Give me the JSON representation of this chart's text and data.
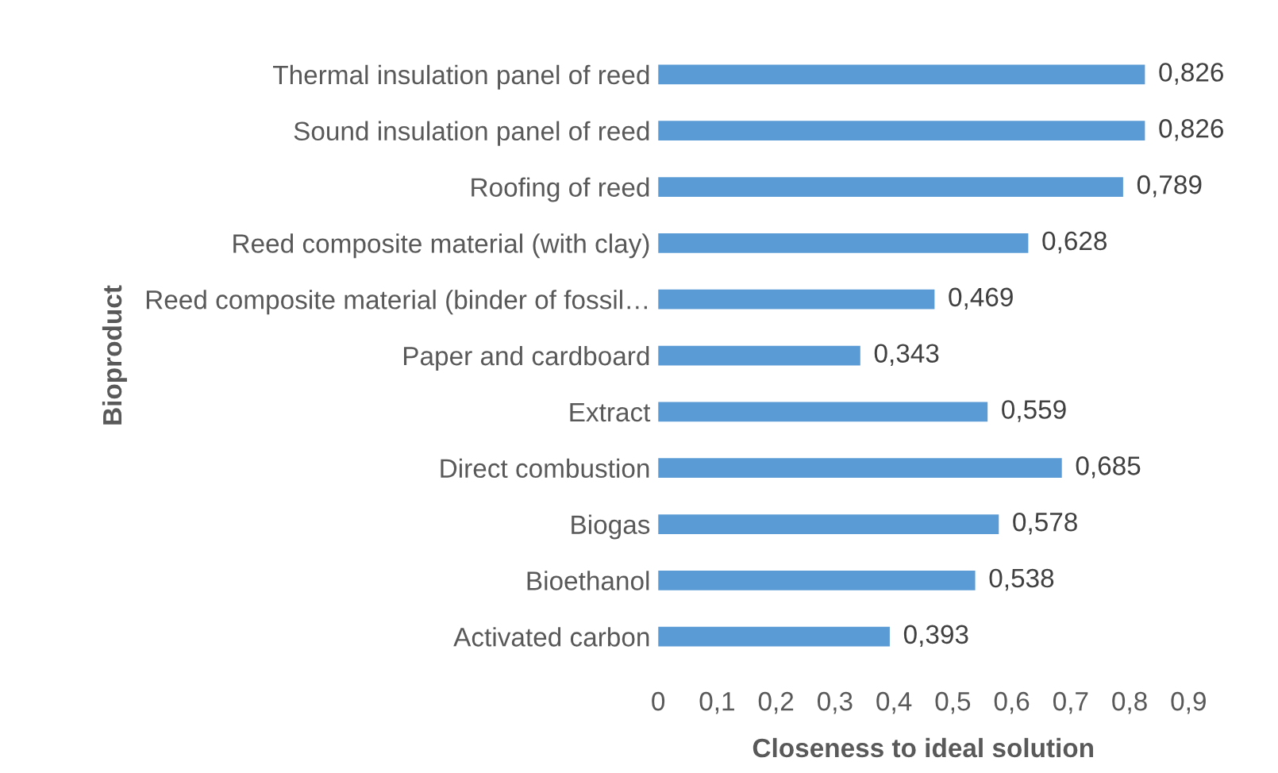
{
  "chart_data": {
    "type": "bar",
    "orientation": "horizontal",
    "xlabel": "Closeness to ideal solution",
    "ylabel": "Bioproduct",
    "categories": [
      "Thermal insulation panel of reed",
      "Sound insulation panel of reed",
      "Roofing of reed",
      "Reed composite material (with clay)",
      "Reed composite material (binder of fossil…",
      "Paper and cardboard",
      "Extract",
      "Direct combustion",
      "Biogas",
      "Bioethanol",
      "Activated carbon"
    ],
    "values": [
      0.826,
      0.826,
      0.789,
      0.628,
      0.469,
      0.343,
      0.559,
      0.685,
      0.578,
      0.538,
      0.393
    ],
    "value_labels": [
      "0,826",
      "0,826",
      "0,789",
      "0,628",
      "0,469",
      "0,343",
      "0,559",
      "0,685",
      "0,578",
      "0,538",
      "0,393"
    ],
    "color": "#5b9bd5",
    "xlim": [
      0,
      0.9
    ],
    "xticks": [
      0,
      {
        "value": 0.1,
        "label": "0,1"
      },
      {
        "value": 0.2,
        "label": "0,2"
      },
      {
        "value": 0.3,
        "label": "0,3"
      },
      {
        "value": 0.4,
        "label": "0,4"
      },
      {
        "value": 0.5,
        "label": "0,5"
      },
      {
        "value": 0.6,
        "label": "0,6"
      },
      {
        "value": 0.7,
        "label": "0,7"
      },
      {
        "value": 0.8,
        "label": "0,8"
      },
      {
        "value": 0.9,
        "label": "0,9"
      }
    ],
    "grid": false,
    "legend": false
  }
}
